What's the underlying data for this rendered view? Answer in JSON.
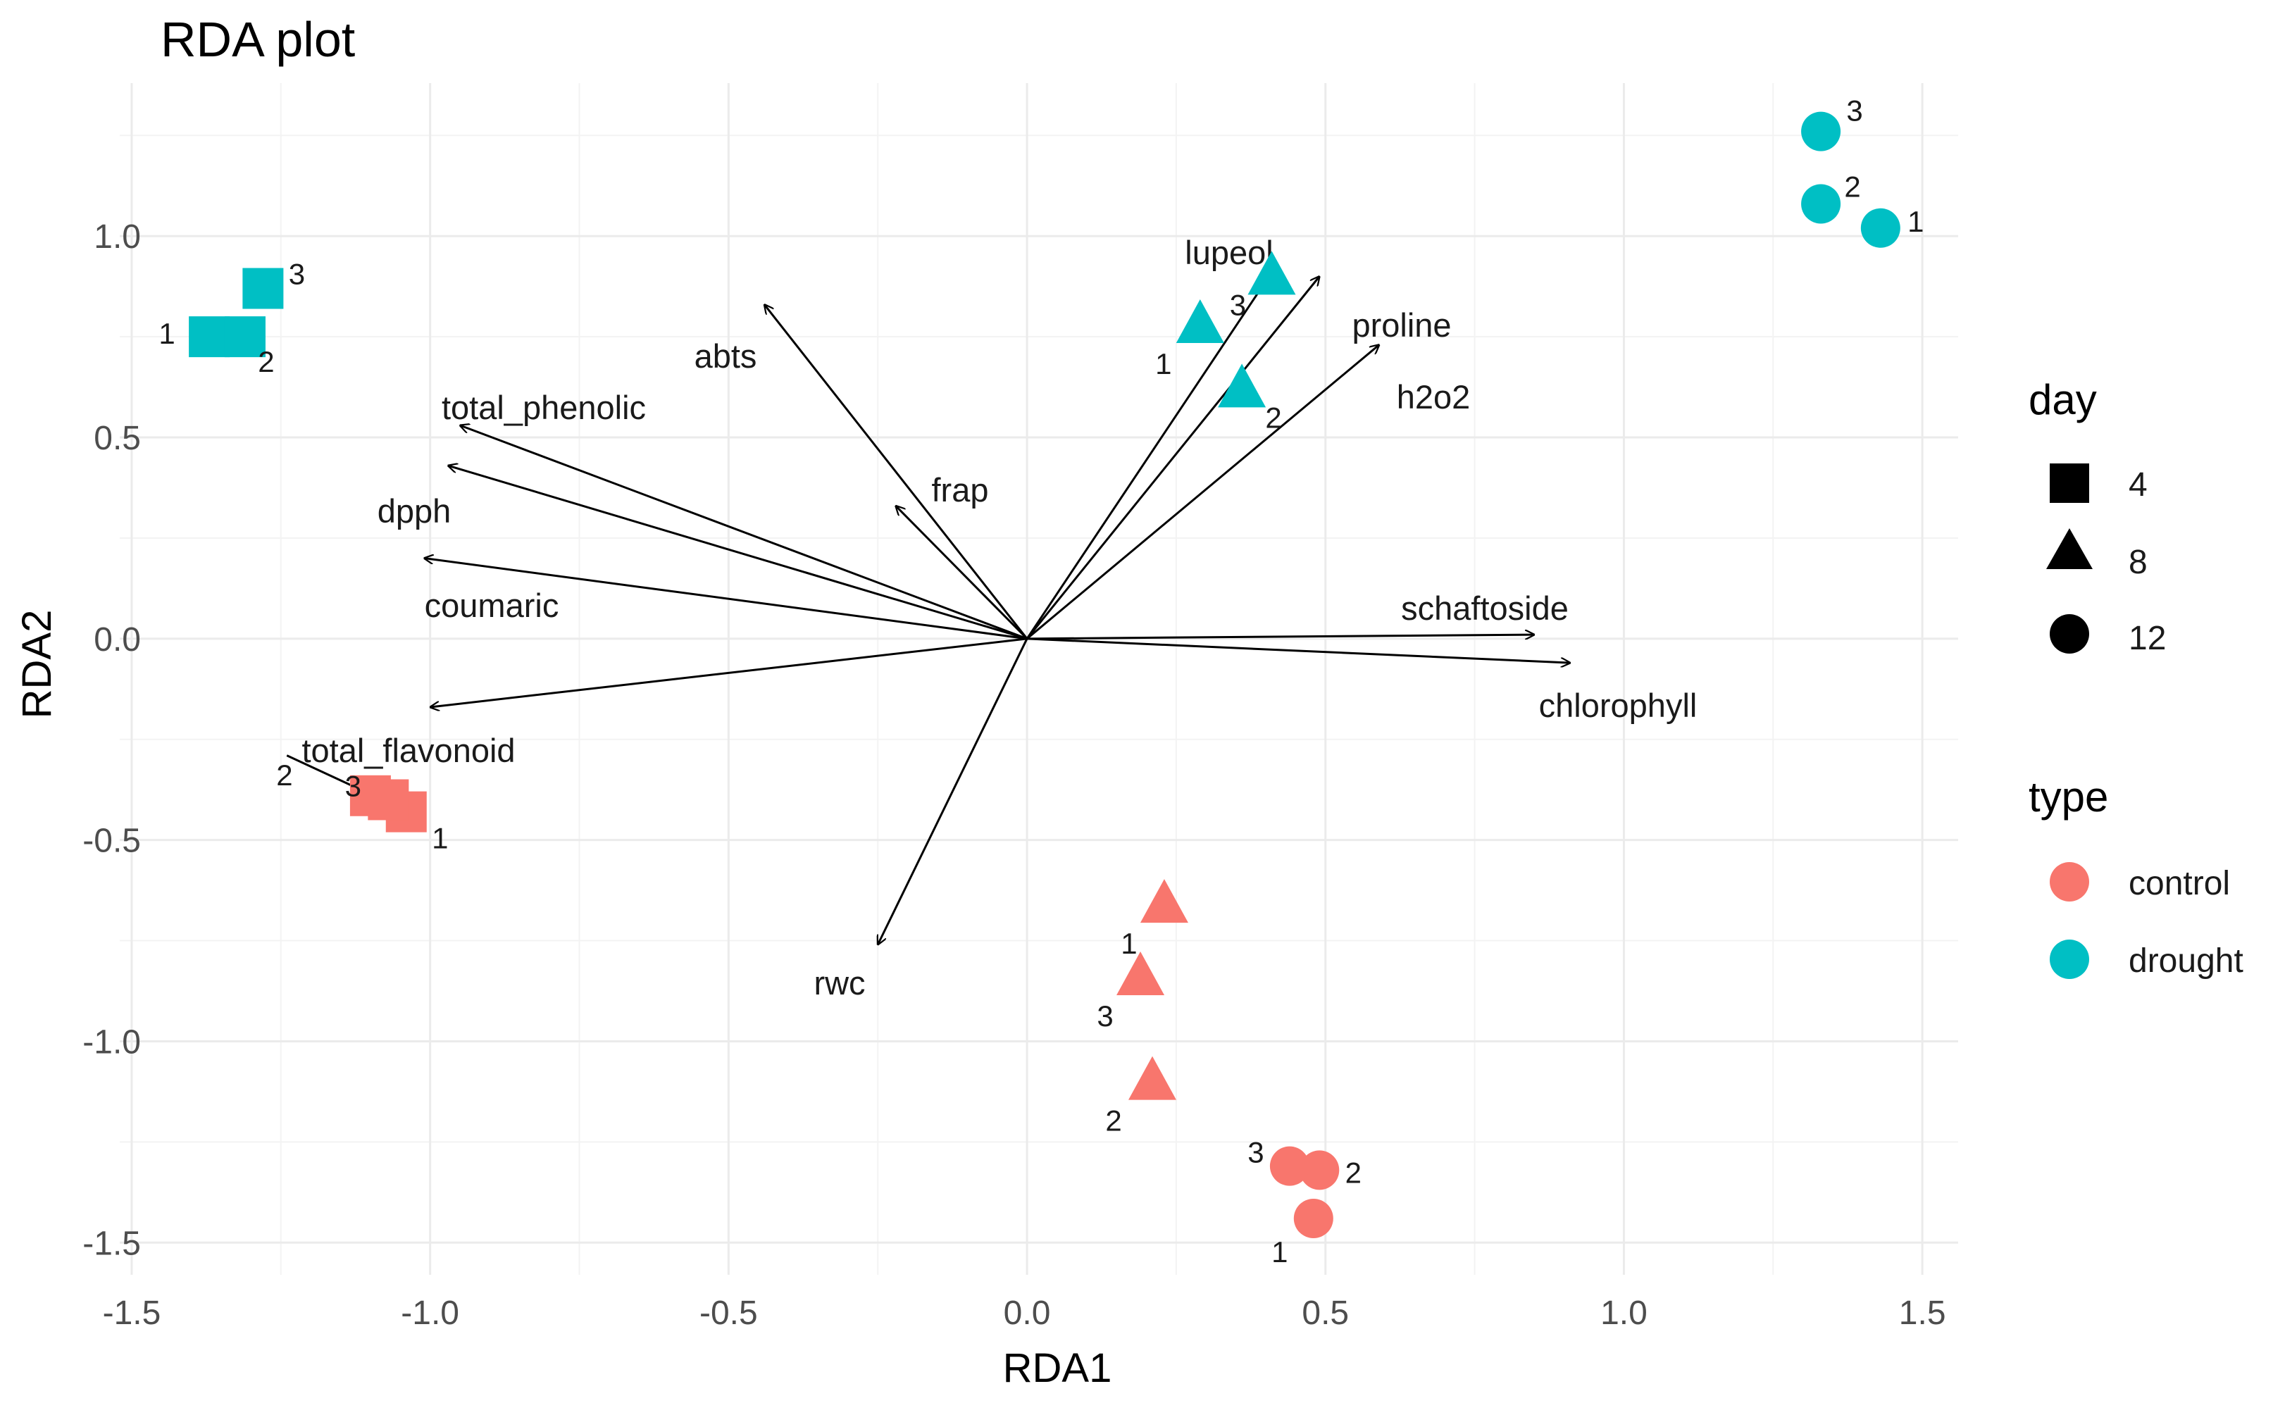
{
  "chart_data": {
    "type": "scatter",
    "title": "RDA plot",
    "xlabel": "RDA1",
    "ylabel": "RDA2",
    "xlim": [
      -1.52,
      1.56
    ],
    "ylim": [
      -1.58,
      1.38
    ],
    "x_ticks": [
      {
        "value": -1.5,
        "label": "-1.5"
      },
      {
        "value": -1.0,
        "label": "-1.0"
      },
      {
        "value": -0.5,
        "label": "-0.5"
      },
      {
        "value": 0.0,
        "label": "0.0"
      },
      {
        "value": 0.5,
        "label": "0.5"
      },
      {
        "value": 1.0,
        "label": "1.0"
      },
      {
        "value": 1.5,
        "label": "1.5"
      }
    ],
    "y_ticks": [
      {
        "value": -1.5,
        "label": "-1.5"
      },
      {
        "value": -1.0,
        "label": "-1.0"
      },
      {
        "value": -0.5,
        "label": "-0.5"
      },
      {
        "value": 0.0,
        "label": "0.0"
      },
      {
        "value": 0.5,
        "label": "0.5"
      },
      {
        "value": 1.0,
        "label": "1.0"
      }
    ],
    "grid": true,
    "colors": {
      "control": "#F8766D",
      "drought": "#00BFC4"
    },
    "points": [
      {
        "type": "drought",
        "day": 4,
        "rep": "1",
        "x": -1.37,
        "y": 0.75
      },
      {
        "type": "drought",
        "day": 4,
        "rep": "2",
        "x": -1.31,
        "y": 0.75
      },
      {
        "type": "drought",
        "day": 4,
        "rep": "3",
        "x": -1.28,
        "y": 0.87
      },
      {
        "type": "drought",
        "day": 8,
        "rep": "1",
        "x": 0.29,
        "y": 0.78
      },
      {
        "type": "drought",
        "day": 8,
        "rep": "2",
        "x": 0.36,
        "y": 0.62
      },
      {
        "type": "drought",
        "day": 8,
        "rep": "3",
        "x": 0.41,
        "y": 0.9
      },
      {
        "type": "drought",
        "day": 12,
        "rep": "1",
        "x": 1.43,
        "y": 1.02
      },
      {
        "type": "drought",
        "day": 12,
        "rep": "2",
        "x": 1.33,
        "y": 1.08
      },
      {
        "type": "drought",
        "day": 12,
        "rep": "3",
        "x": 1.33,
        "y": 1.26
      },
      {
        "type": "control",
        "day": 4,
        "rep": "1",
        "x": -1.04,
        "y": -0.43
      },
      {
        "type": "control",
        "day": 4,
        "rep": "2",
        "x": -1.1,
        "y": -0.39
      },
      {
        "type": "control",
        "day": 4,
        "rep": "3",
        "x": -1.07,
        "y": -0.4
      },
      {
        "type": "control",
        "day": 8,
        "rep": "1",
        "x": 0.23,
        "y": -0.66
      },
      {
        "type": "control",
        "day": 8,
        "rep": "2",
        "x": 0.21,
        "y": -1.1
      },
      {
        "type": "control",
        "day": 8,
        "rep": "3",
        "x": 0.19,
        "y": -0.84
      },
      {
        "type": "control",
        "day": 12,
        "rep": "1",
        "x": 0.48,
        "y": -1.44
      },
      {
        "type": "control",
        "day": 12,
        "rep": "2",
        "x": 0.49,
        "y": -1.32
      },
      {
        "type": "control",
        "day": 12,
        "rep": "3",
        "x": 0.44,
        "y": -1.31
      }
    ],
    "arrows": [
      {
        "name": "lupeol",
        "x": 0.41,
        "y": 0.91
      },
      {
        "name": "proline",
        "x": 0.49,
        "y": 0.9
      },
      {
        "name": "h2o2",
        "x": 0.59,
        "y": 0.73
      },
      {
        "name": "abts",
        "x": -0.44,
        "y": 0.83
      },
      {
        "name": "frap",
        "x": -0.22,
        "y": 0.33
      },
      {
        "name": "total_phenolic",
        "x": -0.95,
        "y": 0.53
      },
      {
        "name": "dpph",
        "x": -0.97,
        "y": 0.43
      },
      {
        "name": "coumaric",
        "x": -1.01,
        "y": 0.2
      },
      {
        "name": "total_flavonoid",
        "x": -1.0,
        "y": -0.17
      },
      {
        "name": "rwc",
        "x": -0.25,
        "y": -0.76
      },
      {
        "name": "schaftoside",
        "x": 0.85,
        "y": 0.01
      },
      {
        "name": "chlorophyll",
        "x": 0.91,
        "y": -0.06
      },
      {
        "name": "",
        "x": -1.08,
        "y": -0.4,
        "from": [
          -1.24,
          -0.29
        ]
      }
    ],
    "legend": {
      "placement": "right",
      "day": {
        "title": "day",
        "entries": [
          {
            "label": "4",
            "shape": "square"
          },
          {
            "label": "8",
            "shape": "triangle"
          },
          {
            "label": "12",
            "shape": "circle"
          }
        ]
      },
      "type": {
        "title": "type",
        "entries": [
          {
            "label": "control",
            "color": "#F8766D"
          },
          {
            "label": "drought",
            "color": "#00BFC4"
          }
        ]
      }
    }
  }
}
